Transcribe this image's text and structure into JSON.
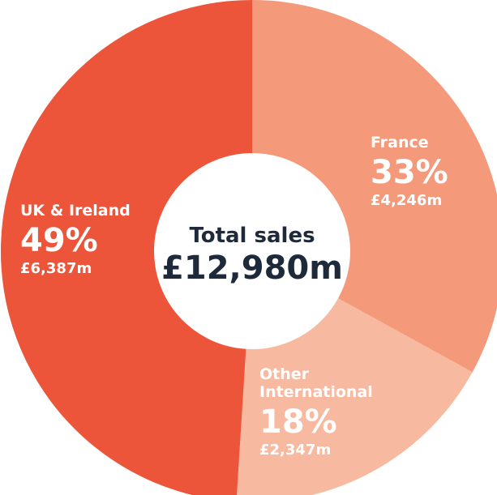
{
  "chart_data": {
    "type": "donut",
    "categories": [
      "France",
      "Other International",
      "UK & Ireland"
    ],
    "values": [
      33,
      18,
      49
    ],
    "value_labels": [
      "33%",
      "18%",
      "49%"
    ],
    "amount_labels": [
      "£4,246m",
      "£2,347m",
      "£6,387m"
    ],
    "colors": [
      "#f4997a",
      "#f7b9a0",
      "#ec553a"
    ],
    "center_title": "Total sales",
    "center_value": "£12,980m"
  }
}
